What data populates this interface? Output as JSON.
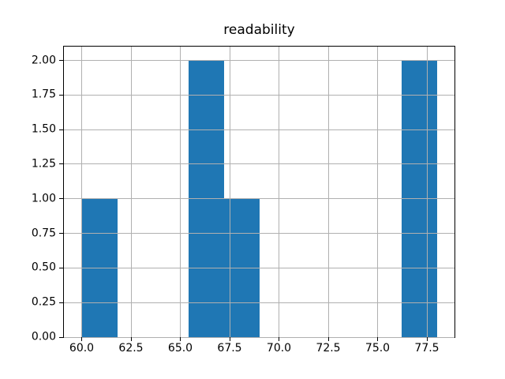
{
  "figure": {
    "background": "#ffffff"
  },
  "chart_data": {
    "type": "bar",
    "subtype": "histogram",
    "title": "readability",
    "xlabel": "",
    "ylabel": "",
    "bin_edges": [
      60.0,
      61.8,
      63.6,
      65.4,
      67.2,
      69.0,
      70.8,
      72.6,
      74.4,
      76.2,
      78.0
    ],
    "counts": [
      1,
      0,
      0,
      2,
      1,
      0,
      0,
      0,
      0,
      2
    ],
    "xlim": [
      59.1,
      78.9
    ],
    "ylim": [
      0,
      2.1
    ],
    "x_ticks": [
      60.0,
      62.5,
      65.0,
      67.5,
      70.0,
      72.5,
      75.0,
      77.5
    ],
    "x_tick_labels": [
      "60.0",
      "62.5",
      "65.0",
      "67.5",
      "70.0",
      "72.5",
      "75.0",
      "77.5"
    ],
    "y_ticks": [
      0.0,
      0.25,
      0.5,
      0.75,
      1.0,
      1.25,
      1.5,
      1.75,
      2.0
    ],
    "y_tick_labels": [
      "0.00",
      "0.25",
      "0.50",
      "0.75",
      "1.00",
      "1.25",
      "1.50",
      "1.75",
      "2.00"
    ],
    "grid": true,
    "grid_on_top_of_bars": true,
    "legend_position": "none",
    "colors": {
      "bar": "#1f77b4",
      "grid": "#b0b0b0",
      "spine": "#000000",
      "text": "#000000"
    }
  }
}
